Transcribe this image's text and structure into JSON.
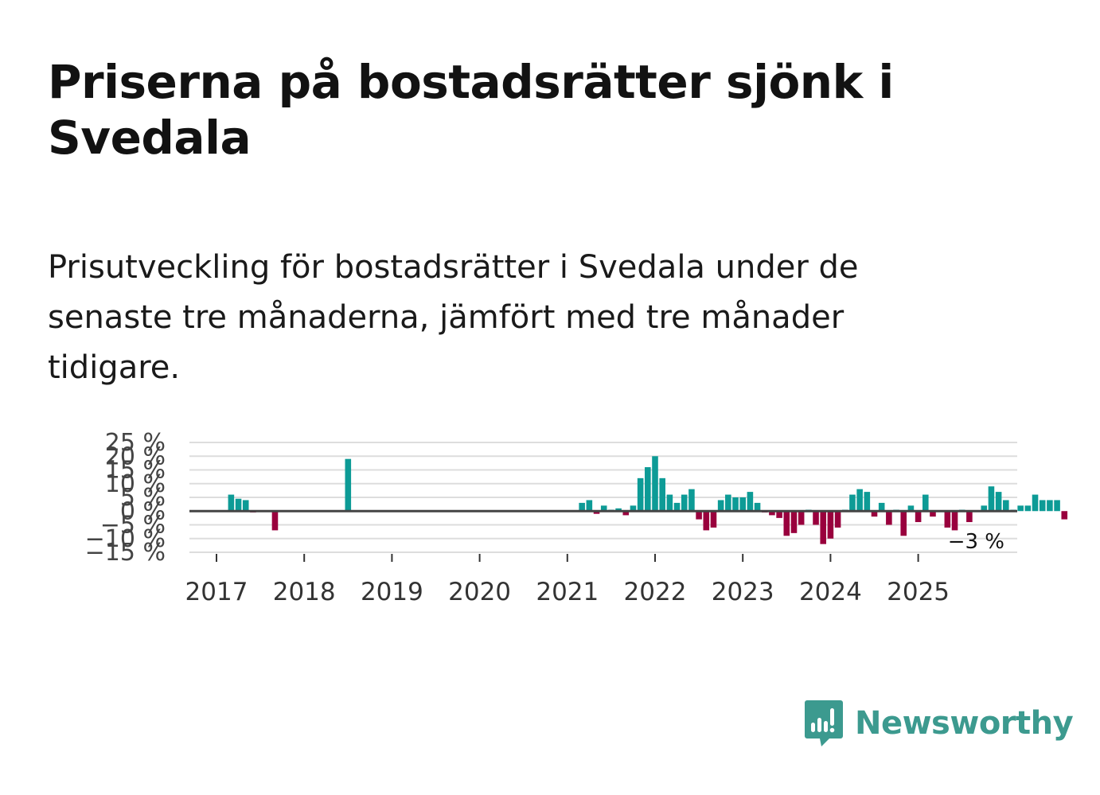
{
  "title": "Priserna på bostadsrätter sjönk i Svedala",
  "subtitle": "Prisutveckling för bostadsrätter i Svedala under de senaste tre månaderna, jämfört med tre månader tidigare.",
  "brand": {
    "name": "Newsworthy",
    "color": "#3c9a8f"
  },
  "colors": {
    "positive": "#0d9b96",
    "negative": "#99003d",
    "grid": "#dddddd",
    "zero": "#444444"
  },
  "chart_data": {
    "type": "bar",
    "title": "Prisutveckling för bostadsrätter i Svedala",
    "xlabel": "",
    "ylabel": "",
    "unit": "%",
    "ylim": [
      -15,
      25
    ],
    "yticks": [
      25,
      20,
      15,
      10,
      5,
      0,
      -5,
      -10,
      -15
    ],
    "ytick_labels": [
      "25 %",
      "20 %",
      "15 %",
      "10 %",
      "5 %",
      "0 %",
      "−5 %",
      "−10 %",
      "−15 %"
    ],
    "xticks": [
      "2017",
      "2018",
      "2019",
      "2020",
      "2021",
      "2022",
      "2023",
      "2024",
      "2025"
    ],
    "start": "2017-01",
    "series": [
      {
        "name": "Prisutveckling",
        "values": [
          null,
          null,
          6,
          4.5,
          4,
          -0.5,
          null,
          null,
          -7,
          null,
          null,
          null,
          null,
          null,
          null,
          null,
          null,
          null,
          19,
          null,
          null,
          null,
          null,
          null,
          null,
          null,
          null,
          null,
          null,
          null,
          null,
          null,
          null,
          null,
          null,
          null,
          null,
          null,
          null,
          null,
          null,
          null,
          null,
          null,
          null,
          null,
          null,
          null,
          null,
          null,
          3,
          4,
          -1,
          2,
          0.5,
          1,
          -1.5,
          2,
          12,
          16,
          20,
          12,
          6,
          3,
          6,
          8,
          -3,
          -7,
          -6,
          4,
          6,
          5,
          5,
          7,
          3,
          -0.5,
          -1.5,
          -2.5,
          -9,
          -8,
          -5,
          0.5,
          -5,
          -12,
          -10,
          -6,
          0.5,
          6,
          8,
          7,
          -2,
          3,
          -5,
          0.5,
          -9,
          2,
          -4,
          6,
          -2,
          0,
          -6,
          -7,
          0.5,
          -4,
          0,
          2,
          9,
          7,
          4,
          0.5,
          2,
          2,
          6,
          4,
          4,
          4,
          -3
        ]
      }
    ],
    "last_label": "−3 %"
  }
}
